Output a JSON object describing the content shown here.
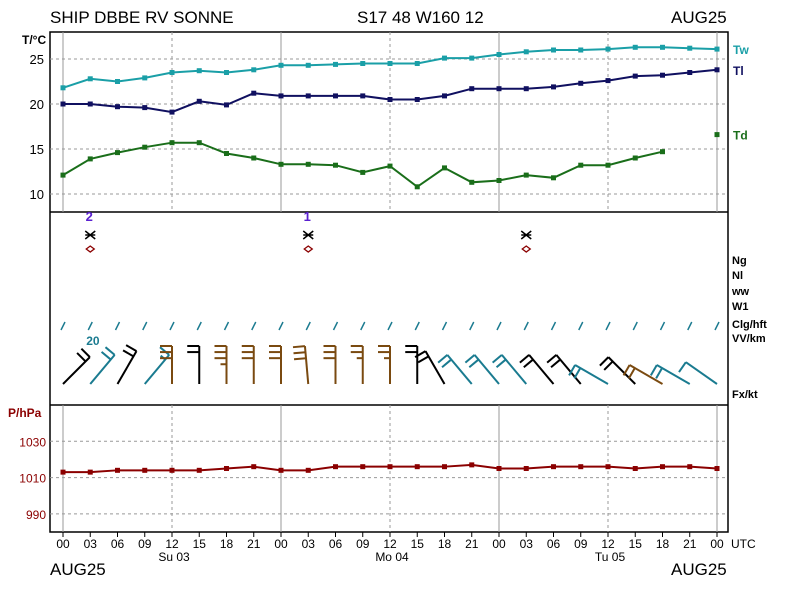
{
  "header": {
    "station": "SHIP DBBE RV SONNE",
    "position": "S17 48 W160 12",
    "month_left": "AUG25",
    "month_right": "AUG25"
  },
  "footer": {
    "month_left": "AUG25",
    "month_right": "AUG25"
  },
  "colors": {
    "tw": "#1a9fa7",
    "tl": "#101060",
    "td": "#1a6e1a",
    "pressure": "#8b0000",
    "wind_black": "#000000",
    "wind_brown": "#7a4a10",
    "wind_teal": "#1a7b90",
    "weather_purple": "#5a20d0",
    "weather_red": "#8b0000"
  },
  "chart_data": [
    {
      "type": "line",
      "panel": "temperature",
      "ylabel": "T/°C",
      "ylim": [
        8,
        28
      ],
      "yticks": [
        10,
        15,
        20,
        25
      ],
      "x_ticks": [
        "00",
        "03",
        "06",
        "09",
        "12",
        "15",
        "18",
        "21",
        "00",
        "03",
        "06",
        "09",
        "12",
        "15",
        "18",
        "21",
        "00",
        "03",
        "06",
        "09",
        "12",
        "15",
        "18",
        "21",
        "00"
      ],
      "x_day_labels": [
        {
          "index": 4,
          "label": "Su 03"
        },
        {
          "index": 12,
          "label": "Mo 04"
        },
        {
          "index": 20,
          "label": "Tu 05"
        }
      ],
      "x_unit": "UTC",
      "series": [
        {
          "name": "Tw",
          "color_key": "tw",
          "values": [
            21.8,
            22.8,
            22.5,
            22.9,
            23.5,
            23.7,
            23.5,
            23.8,
            24.3,
            24.3,
            24.4,
            24.5,
            24.5,
            24.5,
            25.1,
            25.1,
            25.5,
            25.8,
            26.0,
            26.0,
            26.1,
            26.3,
            26.3,
            26.2,
            26.1
          ]
        },
        {
          "name": "Tl",
          "color_key": "tl",
          "values": [
            20.0,
            20.0,
            19.7,
            19.6,
            19.1,
            20.3,
            19.9,
            21.2,
            20.9,
            20.9,
            20.9,
            20.9,
            20.5,
            20.5,
            20.9,
            21.7,
            21.7,
            21.7,
            21.9,
            22.3,
            22.6,
            23.1,
            23.2,
            23.5,
            23.8
          ]
        },
        {
          "name": "Td",
          "color_key": "td",
          "values": [
            12.1,
            13.9,
            14.6,
            15.2,
            15.7,
            15.7,
            14.5,
            14.0,
            13.3,
            13.3,
            13.2,
            12.4,
            13.1,
            10.8,
            12.9,
            11.3,
            11.5,
            12.1,
            11.8,
            13.2,
            13.2,
            14.0,
            14.7,
            null,
            16.6
          ]
        }
      ]
    },
    {
      "type": "line",
      "panel": "pressure",
      "ylabel": "P/hPa",
      "ylim": [
        980,
        1050
      ],
      "yticks": [
        990,
        1010,
        1030
      ],
      "series": [
        {
          "name": "P",
          "color_key": "pressure",
          "values": [
            1013,
            1013,
            1014,
            1014,
            1014,
            1014,
            1015,
            1016,
            1014,
            1014,
            1016,
            1016,
            1016,
            1016,
            1016,
            1017,
            1015,
            1015,
            1016,
            1016,
            1016,
            1015,
            1016,
            1016,
            1015
          ]
        }
      ]
    }
  ],
  "weather_panel": {
    "row_labels": [
      "Ng",
      "Nl",
      "ww",
      "W1",
      "Clg/hft",
      "VV/km",
      "Fx/kt"
    ],
    "visibility_label": "20",
    "w1_symbols": [
      {
        "index": 1,
        "glyph": "2"
      },
      {
        "index": 9,
        "glyph": "1"
      }
    ],
    "ww_symbols": [
      1,
      9,
      17
    ],
    "wind_barbs": [
      {
        "color": "black",
        "dir": 225,
        "long": 2,
        "short": 0
      },
      {
        "color": "teal",
        "dir": 220,
        "long": 2,
        "short": 0
      },
      {
        "color": "black",
        "dir": 210,
        "long": 2,
        "short": 0
      },
      {
        "color": "teal",
        "dir": 220,
        "long": 1,
        "short": 1
      },
      {
        "color": "brown",
        "dir": 180,
        "long": 3,
        "short": 0
      },
      {
        "color": "black",
        "dir": 180,
        "long": 2,
        "short": 0
      },
      {
        "color": "brown",
        "dir": 180,
        "long": 3,
        "short": 1
      },
      {
        "color": "brown",
        "dir": 180,
        "long": 3,
        "short": 0
      },
      {
        "color": "brown",
        "dir": 180,
        "long": 3,
        "short": 0
      },
      {
        "color": "brown",
        "dir": 175,
        "long": 3,
        "short": 0
      },
      {
        "color": "brown",
        "dir": 180,
        "long": 3,
        "short": 0
      },
      {
        "color": "brown",
        "dir": 180,
        "long": 2,
        "short": 1
      },
      {
        "color": "brown",
        "dir": 180,
        "long": 2,
        "short": 1
      },
      {
        "color": "black",
        "dir": 180,
        "long": 2,
        "short": 0
      },
      {
        "color": "black",
        "dir": 150,
        "long": 2,
        "short": 0
      },
      {
        "color": "teal",
        "dir": 140,
        "long": 2,
        "short": 0
      },
      {
        "color": "teal",
        "dir": 140,
        "long": 2,
        "short": 0
      },
      {
        "color": "teal",
        "dir": 140,
        "long": 2,
        "short": 0
      },
      {
        "color": "black",
        "dir": 140,
        "long": 2,
        "short": 0
      },
      {
        "color": "black",
        "dir": 140,
        "long": 2,
        "short": 0
      },
      {
        "color": "teal",
        "dir": 120,
        "long": 2,
        "short": 0
      },
      {
        "color": "black",
        "dir": 135,
        "long": 2,
        "short": 0
      },
      {
        "color": "brown",
        "dir": 120,
        "long": 2,
        "short": 0
      },
      {
        "color": "teal",
        "dir": 120,
        "long": 2,
        "short": 0
      },
      {
        "color": "teal",
        "dir": 125,
        "long": 1,
        "short": 0
      }
    ]
  }
}
